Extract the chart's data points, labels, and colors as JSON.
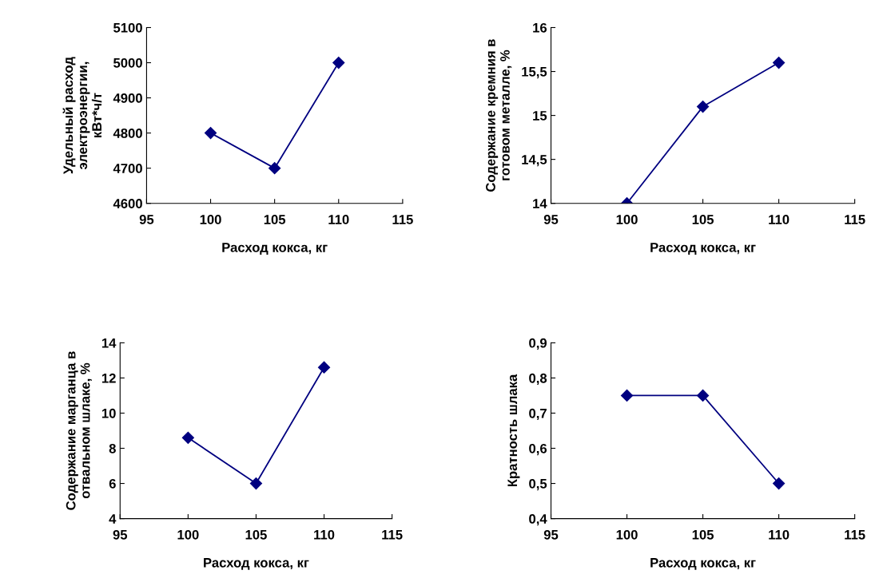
{
  "chart_data": [
    {
      "type": "line",
      "xlabel": "Расход кокса, кг",
      "ylabel": "Удельный расход\nэлектроэнергии,\nкВт*ч/т",
      "x": [
        100,
        105,
        110
      ],
      "series": [
        {
          "color": "#000080",
          "values": [
            4800,
            4700,
            5000
          ]
        }
      ],
      "xlim": [
        95,
        115
      ],
      "xticks": [
        95,
        100,
        105,
        110,
        115
      ],
      "ylim": [
        4600,
        5100
      ],
      "yticks": [
        4600,
        4700,
        4800,
        4900,
        5000,
        5100
      ],
      "marker": "diamond",
      "line_style": "solid",
      "grid": false,
      "legend": false
    },
    {
      "type": "line",
      "xlabel": "Расход кокса, кг",
      "ylabel": "Содержание кремния в\nготовом металле, %",
      "x": [
        100,
        105,
        110
      ],
      "series": [
        {
          "color": "#000080",
          "values": [
            14,
            15.1,
            15.6
          ]
        }
      ],
      "xlim": [
        95,
        115
      ],
      "xticks": [
        95,
        100,
        105,
        110,
        115
      ],
      "ylim": [
        14,
        16
      ],
      "yticks": [
        14,
        {
          "value": 14.5,
          "label": "14,5"
        },
        15,
        {
          "value": 15.5,
          "label": "15,5"
        },
        16
      ],
      "marker": "diamond",
      "line_style": "solid",
      "grid": false,
      "legend": false
    },
    {
      "type": "line",
      "xlabel": "Расход кокса, кг",
      "ylabel": "Содержание марганца в\nотвальном шлаке, %",
      "x": [
        100,
        105,
        110
      ],
      "series": [
        {
          "color": "#000080",
          "values": [
            8.6,
            6,
            12.6
          ]
        }
      ],
      "xlim": [
        95,
        115
      ],
      "xticks": [
        95,
        100,
        105,
        110,
        115
      ],
      "ylim": [
        4,
        14
      ],
      "yticks": [
        4,
        6,
        8,
        10,
        12,
        14
      ],
      "marker": "diamond",
      "line_style": "solid",
      "grid": false,
      "legend": false
    },
    {
      "type": "line",
      "xlabel": "Расход кокса, кг",
      "ylabel": "Кратность шлака",
      "x": [
        100,
        105,
        110
      ],
      "series": [
        {
          "color": "#000080",
          "values": [
            0.75,
            0.75,
            0.5
          ]
        }
      ],
      "xlim": [
        95,
        115
      ],
      "xticks": [
        95,
        100,
        105,
        110,
        115
      ],
      "ylim": [
        0.4,
        0.9
      ],
      "yticks": [
        {
          "value": 0.4,
          "label": "0,4"
        },
        {
          "value": 0.5,
          "label": "0,5"
        },
        {
          "value": 0.6,
          "label": "0,6"
        },
        {
          "value": 0.7,
          "label": "0,7"
        },
        {
          "value": 0.8,
          "label": "0,8"
        },
        {
          "value": 0.9,
          "label": "0,9"
        }
      ],
      "marker": "diamond",
      "line_style": "solid",
      "grid": false,
      "legend": false
    }
  ]
}
